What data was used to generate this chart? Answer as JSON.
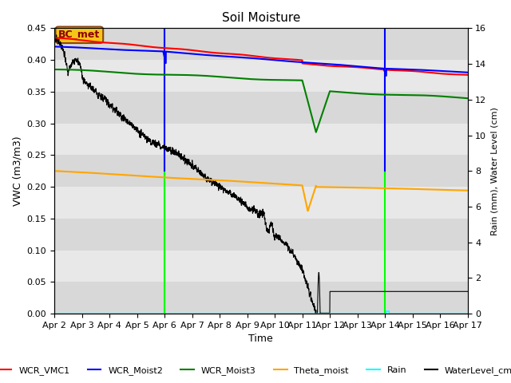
{
  "title": "Soil Moisture",
  "xlabel": "Time",
  "ylabel_left": "VWC (m3/m3)",
  "ylabel_right": "Rain (mm), Water Level (cm)",
  "ylim_left": [
    0,
    0.45
  ],
  "ylim_right": [
    0,
    16
  ],
  "x_tick_labels": [
    "Apr 2",
    "Apr 3",
    "Apr 4",
    "Apr 5",
    "Apr 6",
    "Apr 7",
    "Apr 8",
    "Apr 9",
    "Apr 10",
    "Apr 11",
    "Apr 12",
    "Apr 13",
    "Apr 14",
    "Apr 15",
    "Apr 16",
    "Apr 17"
  ],
  "annotation_box": "BC_met",
  "legend_entries": [
    "WCR_VMC1",
    "WCR_Moist2",
    "WCR_Moist3",
    "Theta_moist",
    "Rain",
    "WaterLevel_cm"
  ],
  "legend_colors": [
    "red",
    "blue",
    "green",
    "orange",
    "cyan",
    "black"
  ],
  "bg_light": "#e8e8e8",
  "bg_dark": "#d0d0d0",
  "green_vline1": 4.0,
  "green_vline2": 12.0,
  "blue_vline1": 4.0,
  "blue_vline2": 12.0
}
